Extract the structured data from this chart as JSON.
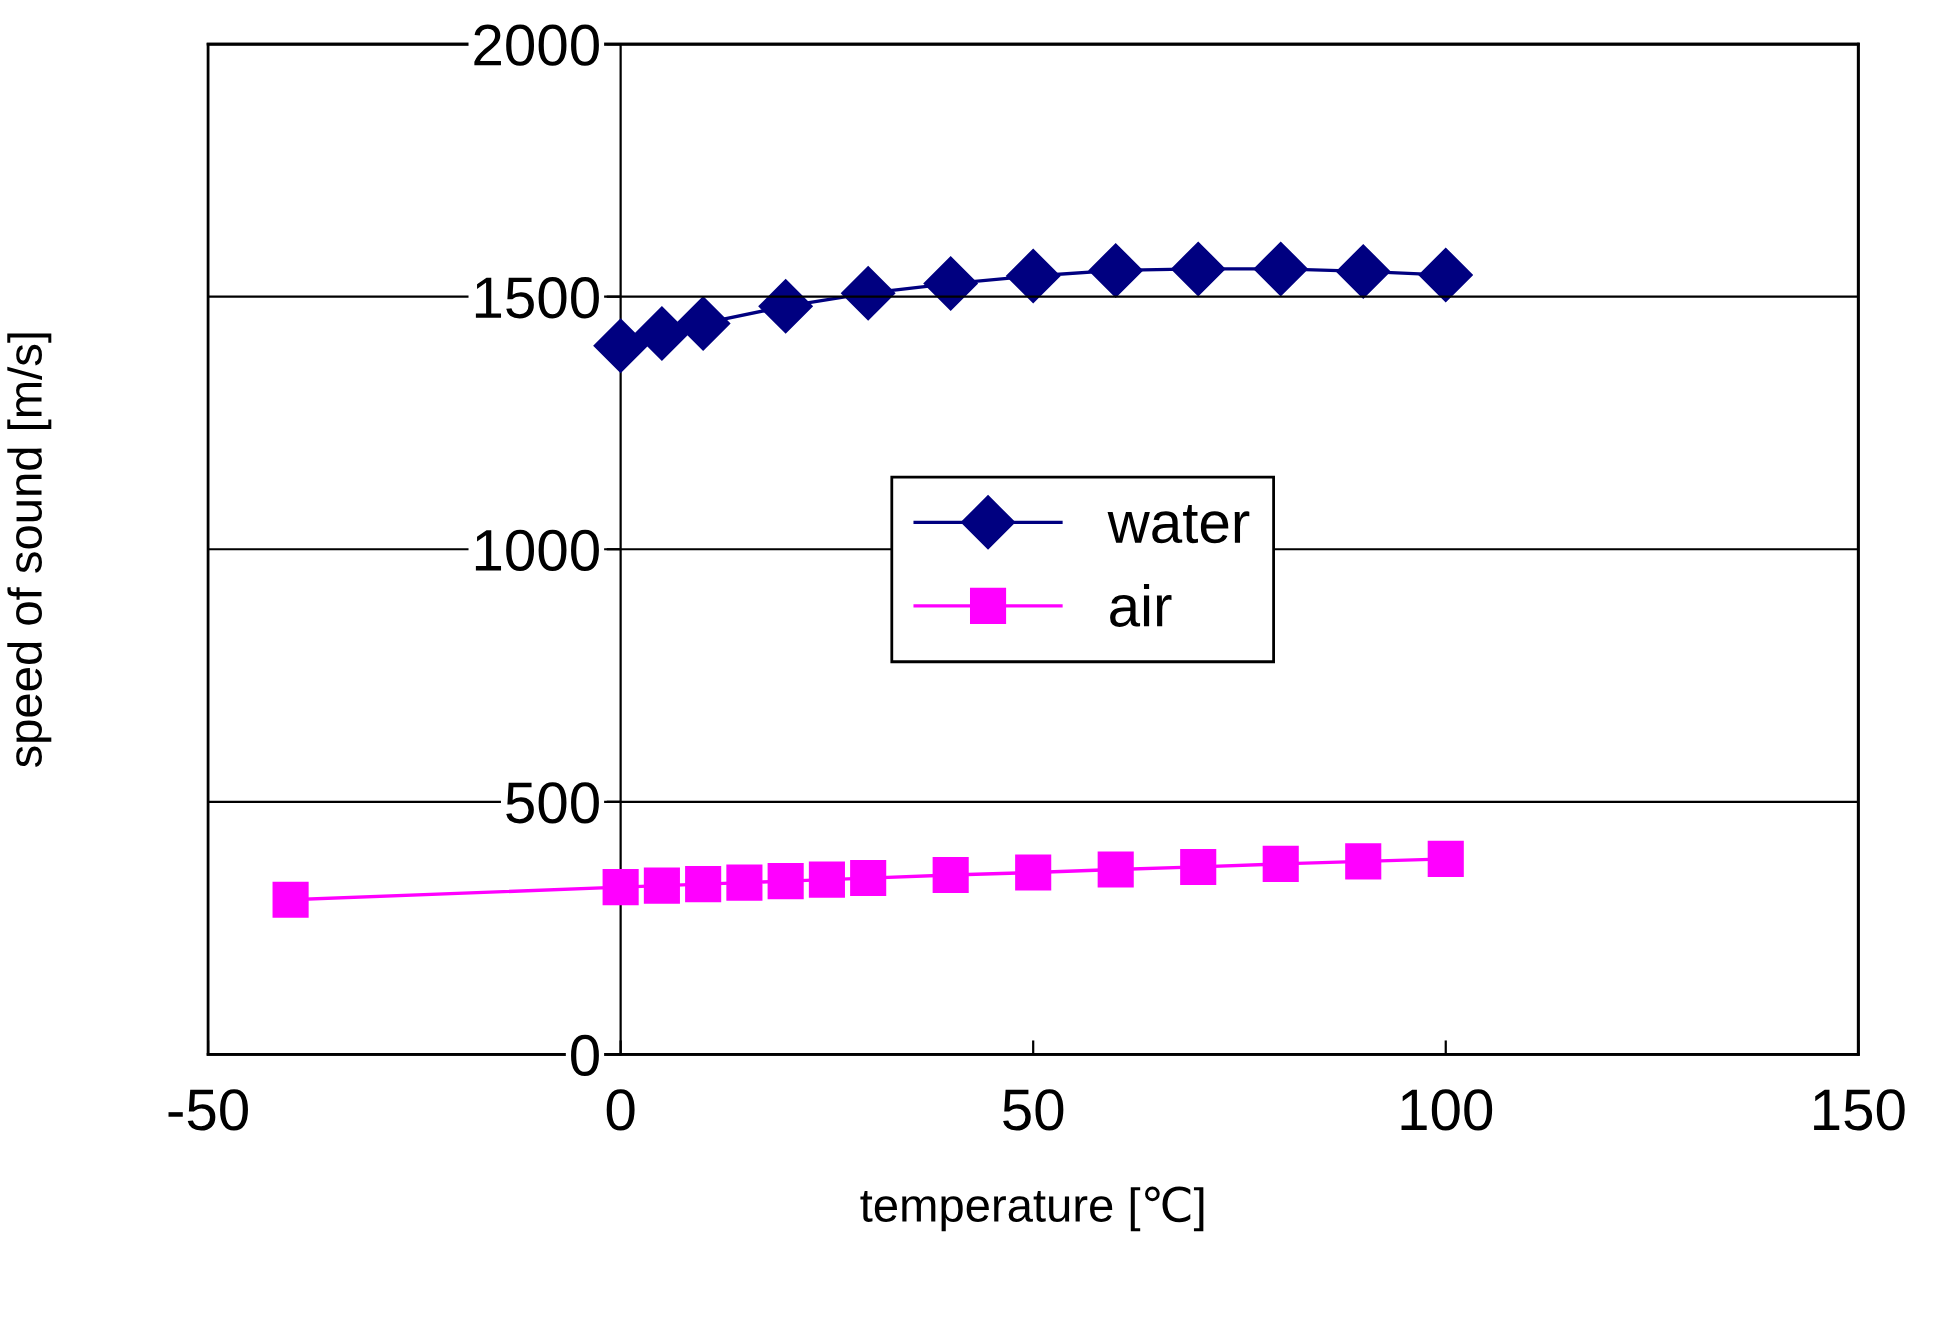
{
  "chart_data": {
    "type": "line",
    "xlabel": "temperature [℃]",
    "ylabel": "speed of sound [m/s]",
    "xlim": [
      -50,
      150
    ],
    "xticks": [
      -50,
      0,
      50,
      100,
      150
    ],
    "ylim": [
      0,
      2000
    ],
    "yticks": [
      0,
      500,
      1000,
      1500,
      2000
    ],
    "grid": "y",
    "legend": "center",
    "series": [
      {
        "name": "water",
        "color": "#000080",
        "marker": "diamond",
        "x": [
          0,
          5,
          10,
          20,
          30,
          40,
          50,
          60,
          70,
          80,
          90,
          100
        ],
        "values": [
          1403,
          1427,
          1447,
          1481,
          1507,
          1526,
          1541,
          1552,
          1555,
          1555,
          1550,
          1543
        ]
      },
      {
        "name": "air",
        "color": "#ff00ff",
        "marker": "square",
        "x": [
          -40,
          0,
          5,
          10,
          15,
          20,
          25,
          30,
          40,
          50,
          60,
          70,
          80,
          90,
          100
        ],
        "values": [
          306,
          331,
          334,
          337,
          340,
          343,
          346,
          349,
          355,
          360,
          366,
          371,
          377,
          382,
          387
        ]
      }
    ]
  }
}
